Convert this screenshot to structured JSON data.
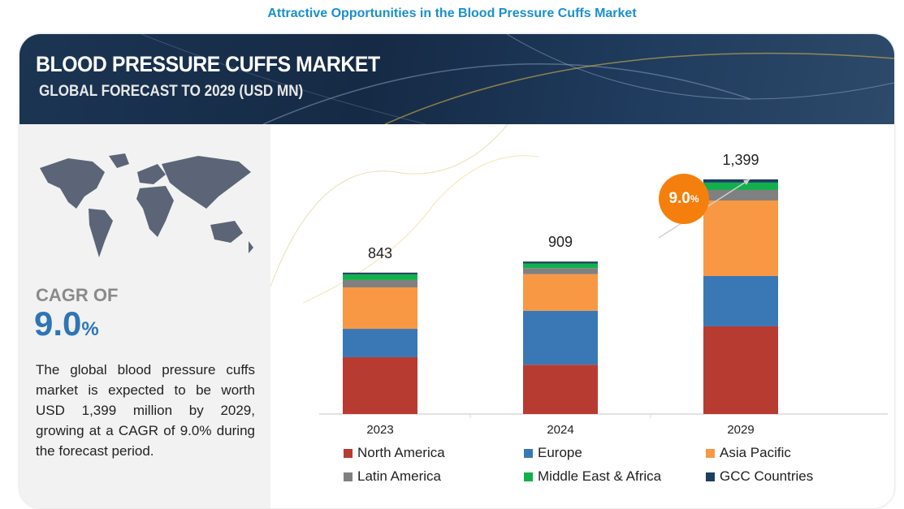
{
  "page_title": "Attractive Opportunities in the Blood Pressure Cuffs Market",
  "banner": {
    "title": "BLOOD PRESSURE CUFFS MARKET",
    "subtitle": "GLOBAL FORECAST TO 2029 (USD MN)"
  },
  "summary": {
    "cagr_label": "CAGR OF",
    "cagr_value": "9.0",
    "cagr_unit": "%",
    "description": "The global blood pressure cuffs market is expected to be worth USD 1,399 million by 2029, growing at a CAGR of 9.0% during the forecast period."
  },
  "growth_bubble": {
    "value": "9.0",
    "unit": "%"
  },
  "chart_data": {
    "type": "bar",
    "stacked": true,
    "title": "Blood Pressure Cuffs Market, Global Forecast to 2029 (USD MN)",
    "categories": [
      "2023",
      "2024",
      "2029"
    ],
    "totals": [
      "843",
      "909",
      "1,399"
    ],
    "total_values": [
      843,
      909,
      1399
    ],
    "series": [
      {
        "name": "North America",
        "color": "#b83b31",
        "values": [
          339,
          294,
          523
        ]
      },
      {
        "name": "Europe",
        "color": "#3a78b5",
        "values": [
          169,
          322,
          300
        ]
      },
      {
        "name": "Asia Pacific",
        "color": "#f89844",
        "values": [
          247,
          218,
          450
        ]
      },
      {
        "name": "Latin America",
        "color": "#808080",
        "values": [
          44,
          36,
          63
        ]
      },
      {
        "name": "Middle East & Africa",
        "color": "#12b04c",
        "values": [
          34,
          28,
          44
        ]
      },
      {
        "name": "GCC Countries",
        "color": "#1d3f62",
        "values": [
          10,
          11,
          19
        ]
      }
    ],
    "ylim": [
      0,
      1450
    ],
    "grid": false,
    "legend_position": "bottom",
    "cagr": "9.0%"
  }
}
